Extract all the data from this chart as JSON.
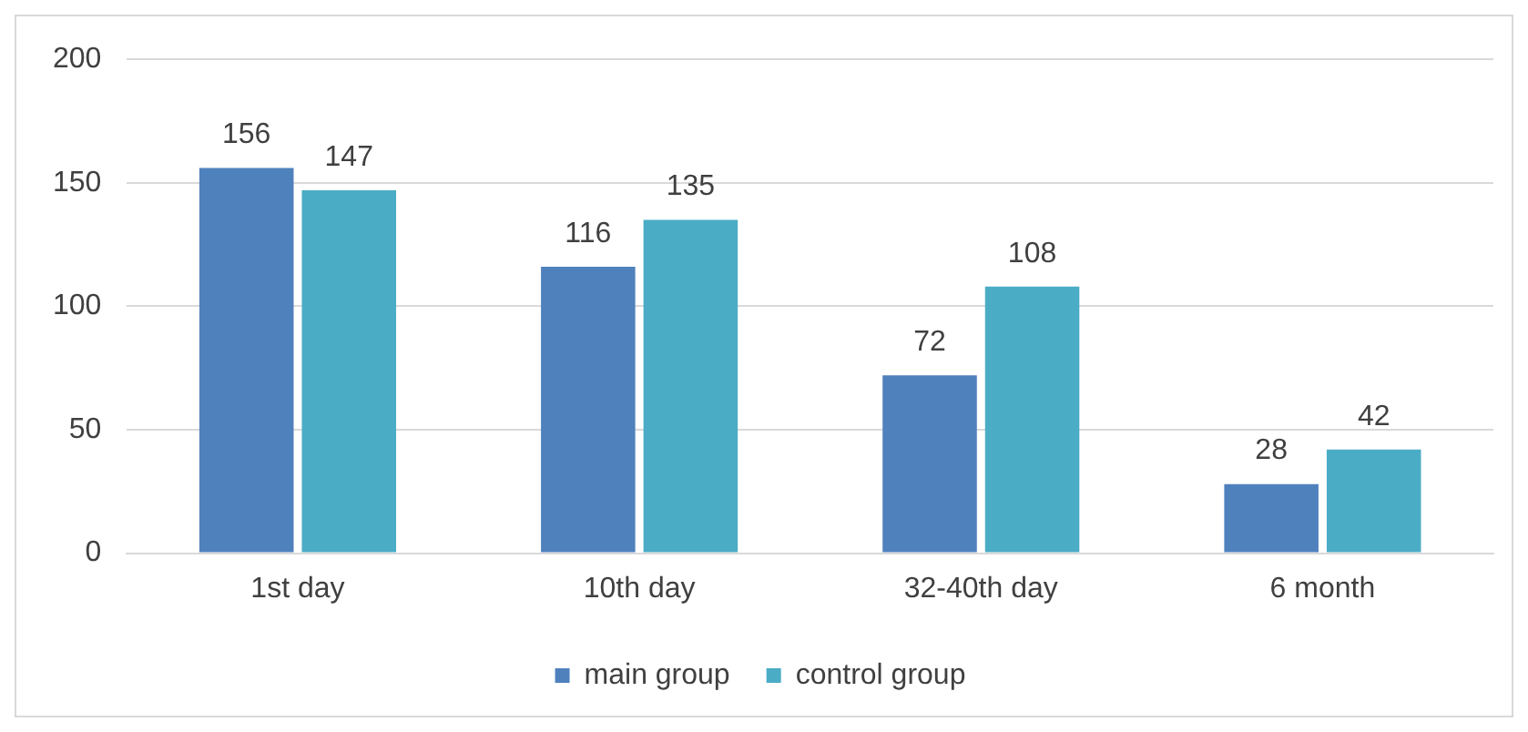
{
  "chart_data": {
    "type": "bar",
    "categories": [
      "1st day",
      "10th day",
      "32-40th day",
      "6 month"
    ],
    "series": [
      {
        "name": "main group",
        "color": "#4f81bd",
        "values": [
          156,
          116,
          72,
          28
        ]
      },
      {
        "name": "control group",
        "color": "#4bacc6",
        "values": [
          147,
          135,
          108,
          42
        ]
      }
    ],
    "ylim": [
      0,
      200
    ],
    "yticks": [
      0,
      50,
      100,
      150,
      200
    ],
    "grid": "y",
    "legend": "bottom",
    "data_labels": true
  }
}
